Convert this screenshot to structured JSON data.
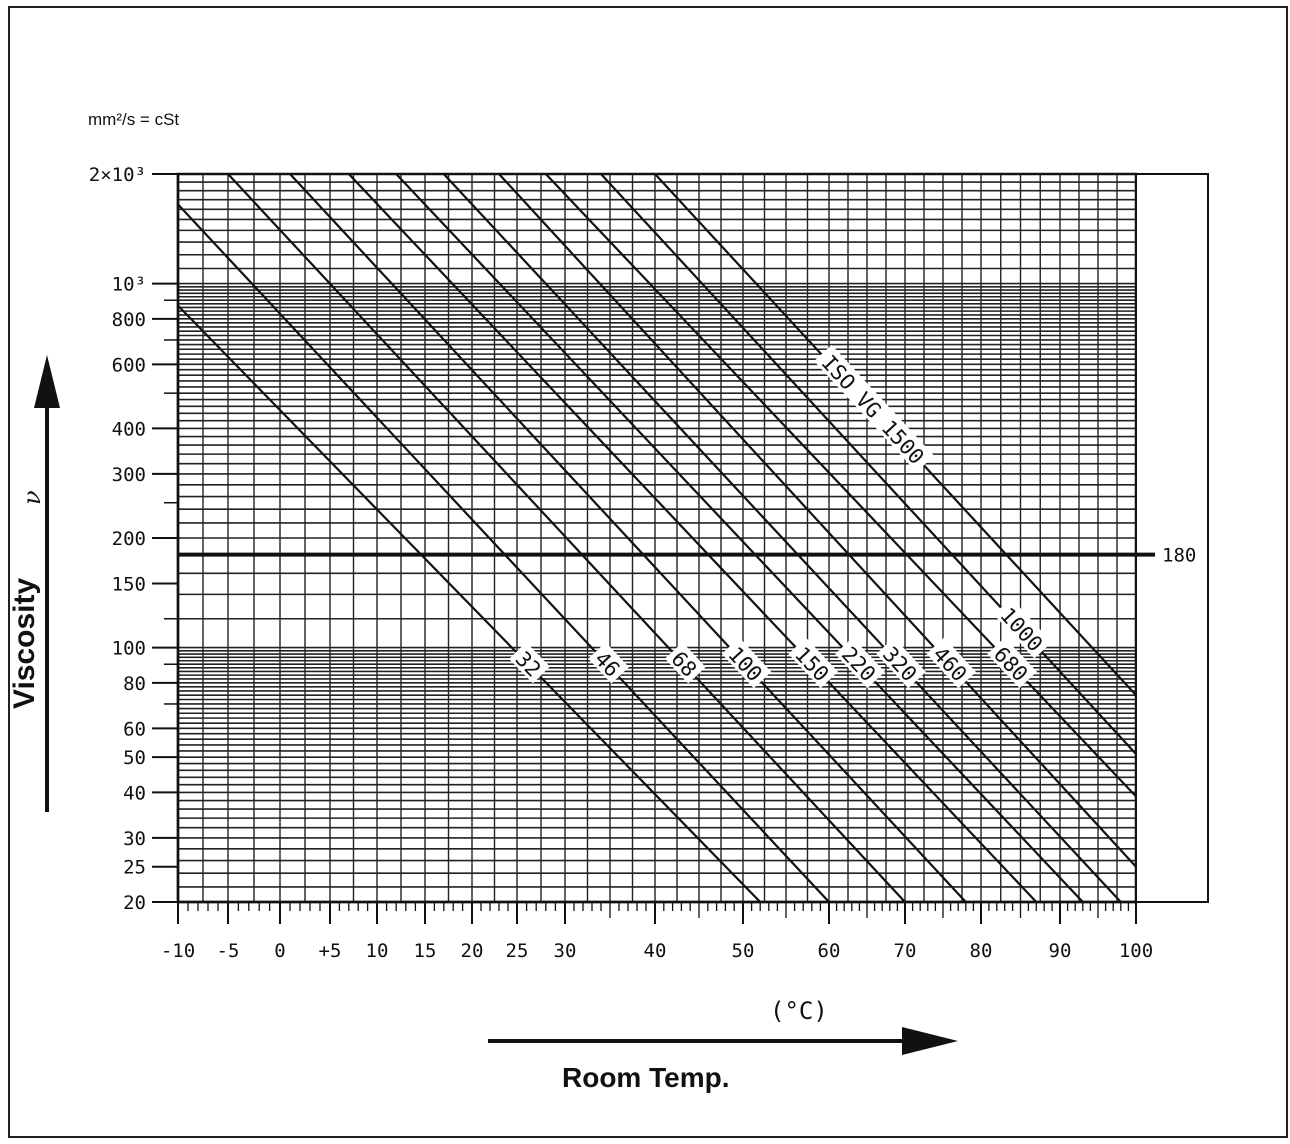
{
  "chart_data": {
    "type": "line",
    "title": "",
    "unit_label": "mm²/s = cSt",
    "ylabel": "Viscosity",
    "ysymbol": "ν",
    "xlabel": "Room Temp.",
    "xunit": "(°C)",
    "xlim": [
      -10,
      100
    ],
    "ylim": [
      20,
      2000
    ],
    "yscale": "log",
    "grid": true,
    "x_ticks": [
      {
        "value": -10,
        "label": "-10"
      },
      {
        "value": -5,
        "label": "-5"
      },
      {
        "value": 0,
        "label": "0"
      },
      {
        "value": 5,
        "label": "+5"
      },
      {
        "value": 10,
        "label": "10"
      },
      {
        "value": 15,
        "label": "15"
      },
      {
        "value": 20,
        "label": "20"
      },
      {
        "value": 25,
        "label": "25"
      },
      {
        "value": 30,
        "label": "30"
      },
      {
        "value": 40,
        "label": "40"
      },
      {
        "value": 50,
        "label": "50"
      },
      {
        "value": 60,
        "label": "60"
      },
      {
        "value": 70,
        "label": "70"
      },
      {
        "value": 80,
        "label": "80"
      },
      {
        "value": 90,
        "label": "90"
      },
      {
        "value": 100,
        "label": "100"
      }
    ],
    "y_ticks": [
      {
        "value": 2000,
        "label": "2×10³"
      },
      {
        "value": 1000,
        "label": "10³"
      },
      {
        "value": 800,
        "label": "800"
      },
      {
        "value": 600,
        "label": "600"
      },
      {
        "value": 400,
        "label": "400"
      },
      {
        "value": 300,
        "label": "300"
      },
      {
        "value": 200,
        "label": "200"
      },
      {
        "value": 150,
        "label": "150"
      },
      {
        "value": 100,
        "label": "100"
      },
      {
        "value": 80,
        "label": "80"
      },
      {
        "value": 60,
        "label": "60"
      },
      {
        "value": 50,
        "label": "50"
      },
      {
        "value": 40,
        "label": "40"
      },
      {
        "value": 30,
        "label": "30"
      },
      {
        "value": 25,
        "label": "25"
      },
      {
        "value": 20,
        "label": "20"
      }
    ],
    "reference_line": {
      "value": 180,
      "label": "180"
    },
    "series": [
      {
        "name": "32",
        "label": "32",
        "x": [
          -10,
          52
        ],
        "y": [
          870,
          20
        ]
      },
      {
        "name": "46",
        "label": "46",
        "x": [
          -10,
          60
        ],
        "y": [
          1650,
          20
        ]
      },
      {
        "name": "68",
        "label": "68",
        "x": [
          -5,
          70
        ],
        "y": [
          2000,
          20
        ]
      },
      {
        "name": "100",
        "label": "100",
        "x": [
          1,
          78
        ],
        "y": [
          2000,
          20
        ]
      },
      {
        "name": "150",
        "label": "150",
        "x": [
          7,
          87
        ],
        "y": [
          2000,
          20
        ]
      },
      {
        "name": "220",
        "label": "220",
        "x": [
          12,
          93
        ],
        "y": [
          2000,
          20
        ]
      },
      {
        "name": "320",
        "label": "320",
        "x": [
          17,
          98
        ],
        "y": [
          2000,
          20
        ]
      },
      {
        "name": "460",
        "label": "460",
        "x": [
          23,
          100
        ],
        "y": [
          2000,
          25
        ]
      },
      {
        "name": "680",
        "label": "680",
        "x": [
          28,
          100
        ],
        "y": [
          2000,
          39
        ]
      },
      {
        "name": "1000",
        "label": "1000",
        "x": [
          34,
          100
        ],
        "y": [
          2000,
          51
        ]
      },
      {
        "name": "1500",
        "label": "ISO VG 1500",
        "x": [
          40,
          100
        ],
        "y": [
          2000,
          74
        ]
      }
    ]
  }
}
